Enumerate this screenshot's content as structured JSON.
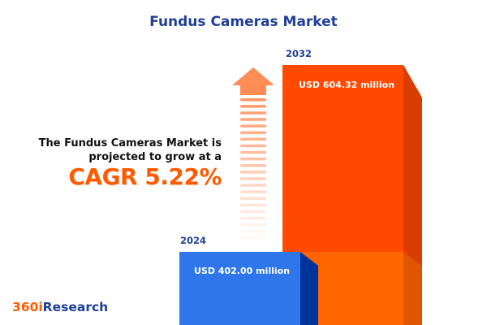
{
  "title": "Fundus Cameras Market",
  "lead_line1": "The Fundus Cameras Market is",
  "lead_line2": "projected to grow at a",
  "cagr_label": "CAGR 5.22%",
  "logo": {
    "part1": "360i",
    "part2": "Research"
  },
  "colors": {
    "title": "#1f3f99",
    "bar_2024": "#2f76eb",
    "bar_2024_side": "#003399",
    "bar_2032": "#ff4a00",
    "bar_2032_side": "#d93d00",
    "bar_2032_lower": "#ff6600",
    "arrow": "#ff8c55",
    "accent": "#ff5a00"
  },
  "chart_data": {
    "type": "bar",
    "categories": [
      "2024",
      "2032"
    ],
    "values": [
      402.0,
      604.32
    ],
    "value_labels": [
      "USD 402.00 million",
      "USD 604.32 million"
    ],
    "unit": "USD million",
    "cagr_percent": 5.22,
    "grid": false,
    "legend": "none"
  }
}
